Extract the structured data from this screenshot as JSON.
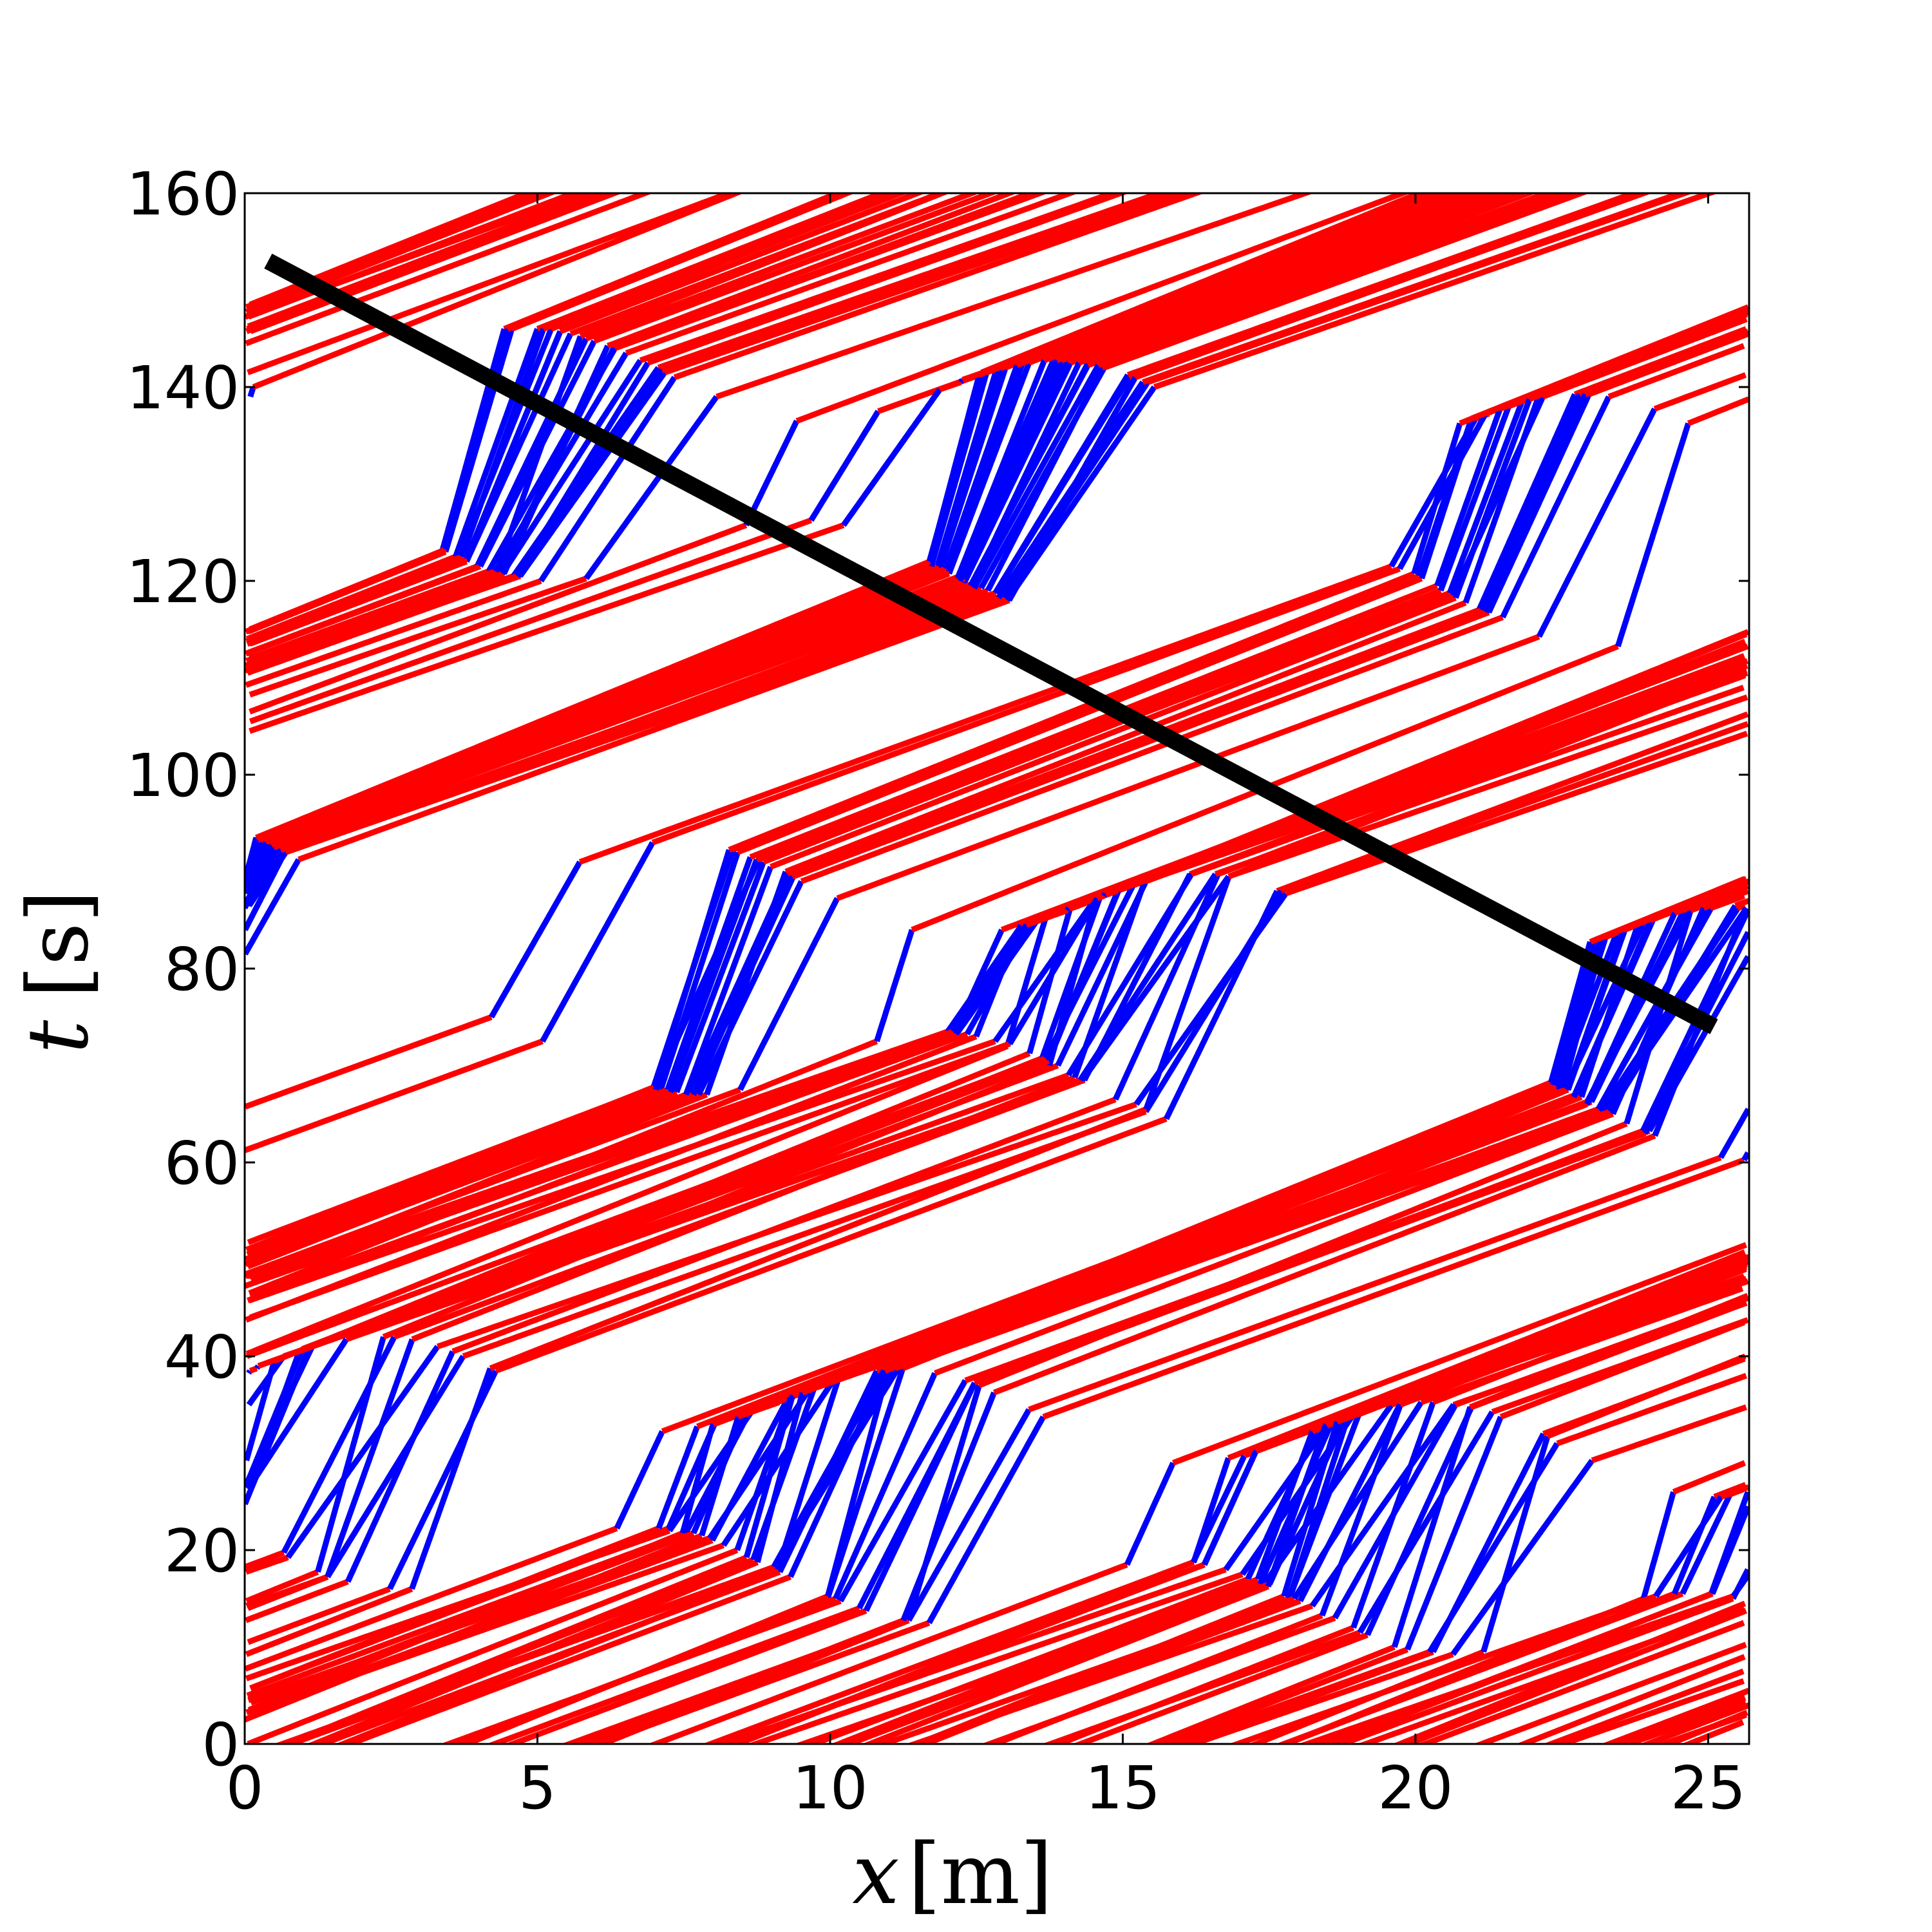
{
  "chart_data": {
    "type": "scatter",
    "description_of_marks": "space-time trajectories (x vs t), colored red for moving segments and blue for nearly stationary segments",
    "title": "",
    "xlabel": {
      "symbol": "x",
      "unit": "[m]"
    },
    "ylabel": {
      "symbol": "t",
      "unit": "[s]"
    },
    "xlim": [
      0,
      25.7
    ],
    "ylim": [
      0,
      160
    ],
    "xticks": [
      "0",
      "5",
      "10",
      "15",
      "20",
      "25"
    ],
    "xtick_values": [
      0,
      5,
      10,
      15,
      20,
      25
    ],
    "yticks": [
      "0",
      "20",
      "40",
      "60",
      "80",
      "100",
      "120",
      "140",
      "160"
    ],
    "ytick_values": [
      0,
      20,
      40,
      60,
      80,
      100,
      120,
      140,
      160
    ],
    "grid": false,
    "colors": {
      "moving": "#ff0000",
      "stopped": "#0000ff",
      "reference_line": "#000000"
    },
    "trajectory_template": {
      "moving_speed_m_per_s": 0.4,
      "stopped_speed_m_per_s": 0.04,
      "spacing_m": 0.55,
      "count": 76
    },
    "jam_bands": [
      {
        "center_t": 25,
        "x_range": [
          0,
          25.7
        ]
      },
      {
        "center_t": 78,
        "x_range": [
          0,
          25.7
        ]
      },
      {
        "center_t": 130,
        "x_range": [
          0,
          25.7
        ]
      }
    ],
    "reference_line": {
      "label": "",
      "points": [
        {
          "x": 0.4,
          "t": 153
        },
        {
          "x": 25.1,
          "t": 74
        }
      ]
    }
  }
}
